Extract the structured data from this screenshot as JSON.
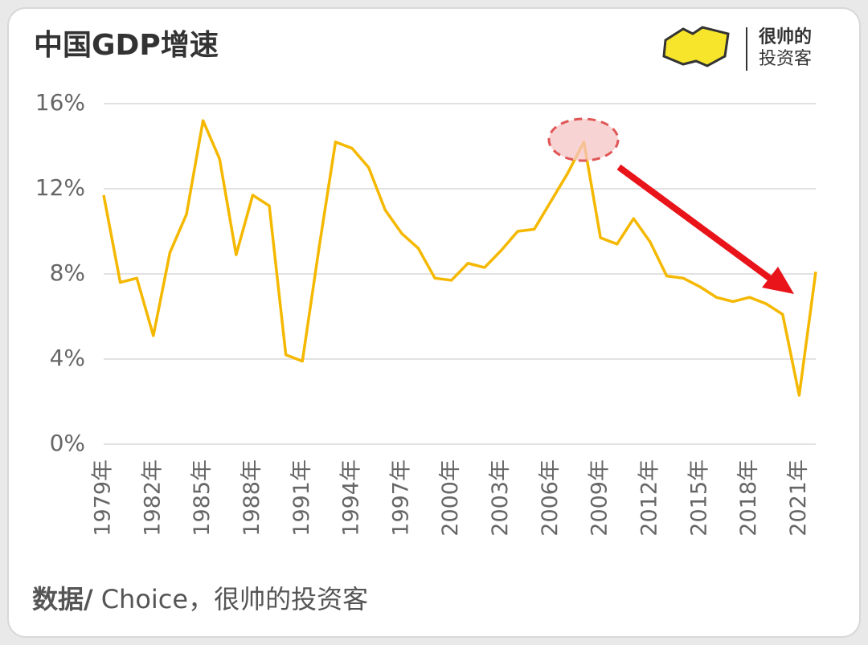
{
  "chart_data": {
    "type": "line",
    "title": "中国GDP增速",
    "brand": [
      "很帅的",
      "投资客"
    ],
    "source": {
      "label": "数据/",
      "text": "Choice，很帅的投资客"
    },
    "categories": [
      "1979年",
      null,
      null,
      "1982年",
      null,
      null,
      "1985年",
      null,
      null,
      "1988年",
      null,
      null,
      "1991年",
      null,
      null,
      "1994年",
      null,
      null,
      "1997年",
      null,
      null,
      "2000年",
      null,
      null,
      "2003年",
      null,
      null,
      "2006年",
      null,
      null,
      "2009年",
      null,
      null,
      "2012年",
      null,
      null,
      "2015年",
      null,
      null,
      "2018年",
      null,
      null,
      "2021年",
      null
    ],
    "series": [
      {
        "name": "GDP增速",
        "color": "#f5b800",
        "values": [
          11.7,
          7.6,
          7.8,
          5.1,
          9.0,
          10.8,
          15.2,
          13.4,
          8.9,
          11.7,
          11.2,
          4.2,
          3.9,
          9.2,
          14.2,
          13.9,
          13.0,
          11.0,
          9.9,
          9.2,
          7.8,
          7.7,
          8.5,
          8.3,
          9.1,
          10.0,
          10.1,
          11.4,
          12.7,
          14.2,
          9.7,
          9.4,
          10.6,
          9.5,
          7.9,
          7.8,
          7.4,
          6.9,
          6.7,
          6.9,
          6.6,
          6.1,
          2.3,
          8.1
        ]
      }
    ],
    "ylim": [
      0,
      16
    ],
    "yticks": [
      {
        "value": 0,
        "label": "0%"
      },
      {
        "value": 4,
        "label": "4%"
      },
      {
        "value": 8,
        "label": "8%"
      },
      {
        "value": 12,
        "label": "12%"
      },
      {
        "value": 16,
        "label": "16%"
      }
    ],
    "grid": true
  }
}
